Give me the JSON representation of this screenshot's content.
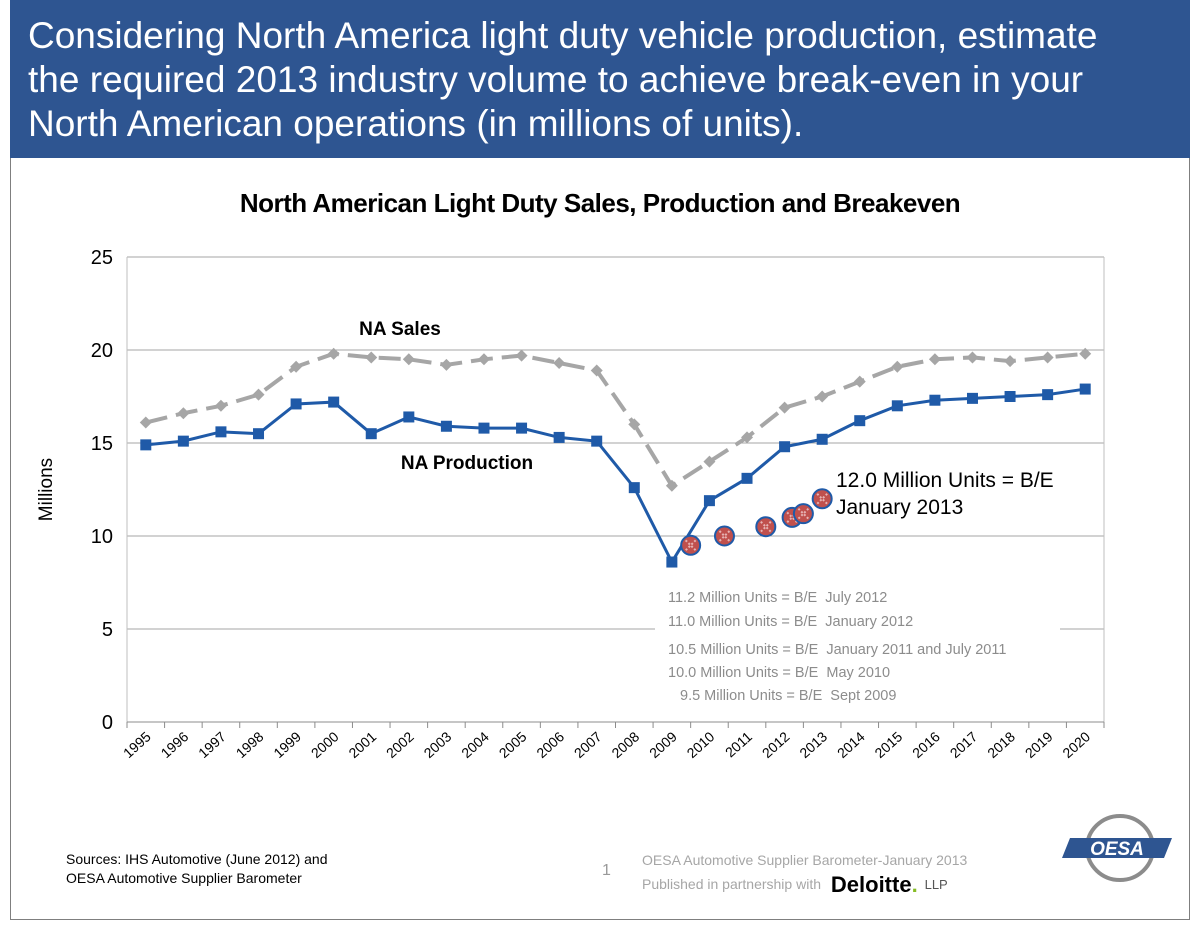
{
  "header": {
    "title_line1": "Considering North America light duty vehicle production, estimate",
    "title_line2": "the required 2013 industry volume to achieve break-even in your",
    "title_line3": "North American operations (in millions of units)."
  },
  "chart_data": {
    "type": "line",
    "title": "North American Light Duty Sales, Production and Breakeven",
    "ylabel": "Millions",
    "xlabel": "",
    "ylim": [
      0,
      25
    ],
    "yticks": [
      0,
      5,
      10,
      15,
      20,
      25
    ],
    "categories": [
      "1995",
      "1996",
      "1997",
      "1998",
      "1999",
      "2000",
      "2001",
      "2002",
      "2003",
      "2004",
      "2005",
      "2006",
      "2007",
      "2008",
      "2009",
      "2010",
      "2011",
      "2012",
      "2013",
      "2014",
      "2015",
      "2016",
      "2017",
      "2018",
      "2019",
      "2020"
    ],
    "grid": true,
    "series": [
      {
        "name": "NA Sales",
        "color": "#a6a6a6",
        "style": "dashed",
        "marker": "diamond",
        "values": [
          16.1,
          16.6,
          17.0,
          17.6,
          19.1,
          19.8,
          19.6,
          19.5,
          19.2,
          19.5,
          19.7,
          19.3,
          18.9,
          16.0,
          12.7,
          14.0,
          15.3,
          16.9,
          17.5,
          18.3,
          19.1,
          19.5,
          19.6,
          19.4,
          19.6,
          19.8
        ]
      },
      {
        "name": "NA Production",
        "color": "#1f5aa8",
        "style": "solid",
        "marker": "square",
        "values": [
          14.9,
          15.1,
          15.6,
          15.5,
          17.1,
          17.2,
          15.5,
          16.4,
          15.9,
          15.8,
          15.8,
          15.3,
          15.1,
          12.6,
          8.6,
          11.9,
          13.1,
          14.8,
          15.2,
          16.2,
          17.0,
          17.3,
          17.4,
          17.5,
          17.6,
          17.9
        ]
      }
    ],
    "breakeven_points": [
      {
        "label": "Sept 2009",
        "x": 2009.5,
        "y": 9.5
      },
      {
        "label": "May 2010",
        "x": 2010.4,
        "y": 10.0
      },
      {
        "label": "January 2011 and July 2011",
        "x": 2011.5,
        "y": 10.5
      },
      {
        "label": "January 2012",
        "x": 2012.2,
        "y": 11.0
      },
      {
        "label": "July 2012",
        "x": 2012.5,
        "y": 11.2
      },
      {
        "label": "January 2013",
        "x": 2013.0,
        "y": 12.0
      }
    ],
    "annotations": {
      "sales_label": "NA Sales",
      "production_label": "NA Production",
      "be_current_line1": "12.0 Million Units = B/E",
      "be_current_line2": "January 2013",
      "be_history": [
        "11.2 Million Units = B/E  July 2012",
        "11.0 Million Units = B/E  January 2012",
        "10.5 Million Units = B/E  January 2011 and July 2011",
        "10.0 Million Units = B/E  May 2010",
        "9.5 Million Units = B/E  Sept 2009"
      ]
    }
  },
  "footer": {
    "sources_line1": "Sources:  IHS Automotive (June 2012) and",
    "sources_line2": "OESA Automotive Supplier Barometer",
    "page_number": "1",
    "barometer": "OESA Automotive Supplier Barometer-January 2013",
    "partnership": "Published in partnership with",
    "deloitte": "Deloitte",
    "deloitte_dot": ".",
    "llp": "LLP",
    "logo_text": "OESA"
  },
  "colors": {
    "header_bg": "#2e5591",
    "production": "#1f5aa8",
    "sales": "#a6a6a6",
    "breakeven_marker": "#c0504d"
  }
}
